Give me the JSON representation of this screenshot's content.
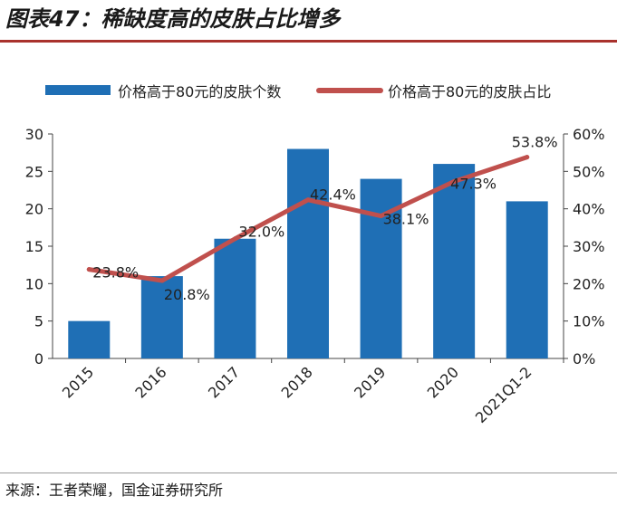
{
  "header": {
    "title": "图表47：稀缺度高的皮肤占比增多"
  },
  "source": "来源：王者荣耀，国金证券研究所",
  "colors": {
    "bar": "#1f6fb5",
    "line": "#c0504d",
    "title_rule": "#a9322d"
  },
  "chart_data": {
    "type": "bar+line",
    "categories": [
      "2015",
      "2016",
      "2017",
      "2018",
      "2019",
      "2020",
      "2021Q1-2"
    ],
    "series": [
      {
        "name": "价格高于80元的皮肤个数",
        "type": "bar",
        "axis": "left",
        "values": [
          5,
          11,
          16,
          28,
          24,
          26,
          21
        ]
      },
      {
        "name": "价格高于80元的皮肤占比",
        "type": "line",
        "axis": "right",
        "values": [
          23.8,
          20.8,
          32.0,
          42.4,
          38.1,
          47.3,
          53.8
        ],
        "labels": [
          "23.8%",
          "20.8%",
          "32.0%",
          "42.4%",
          "38.1%",
          "47.3%",
          "53.8%"
        ]
      }
    ],
    "y_left": {
      "lim": [
        0,
        30
      ],
      "ticks": [
        "0",
        "5",
        "10",
        "15",
        "20",
        "25",
        "30"
      ]
    },
    "y_right": {
      "lim": [
        0,
        60
      ],
      "ticks": [
        "0%",
        "10%",
        "20%",
        "30%",
        "40%",
        "50%",
        "60%"
      ]
    },
    "legend_position": "top",
    "grid": false
  }
}
